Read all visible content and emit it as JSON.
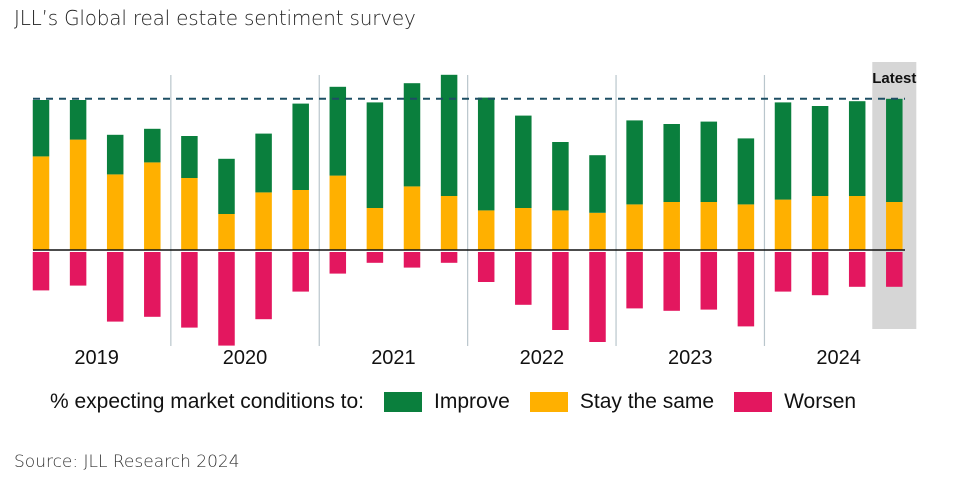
{
  "title": "JLL’s Global real estate sentiment survey",
  "source": "Source: JLL Research 2024",
  "legend": {
    "prefix": "% expecting market conditions to:",
    "items": [
      {
        "label": "Improve",
        "color": "#0a7f3d"
      },
      {
        "label": "Stay the same",
        "color": "#ffb000"
      },
      {
        "label": "Worsen",
        "color": "#e3175f"
      }
    ]
  },
  "chart_data": {
    "type": "bar",
    "stacked": true,
    "highlight_label": "Latest",
    "year_labels": [
      "2019",
      "2020",
      "2021",
      "2022",
      "2023",
      "2024"
    ],
    "bars_per_year": 4,
    "reference_line": "dashed horizontal line at the latest total of Improve + Stay the same",
    "series": [
      {
        "name": "Improve",
        "color": "#0a7f3d",
        "values": [
          47,
          33,
          33,
          28,
          35,
          46,
          49,
          72,
          74,
          88,
          86,
          101,
          94,
          77,
          57,
          48,
          70,
          65,
          67,
          55,
          81,
          75,
          79,
          86
        ]
      },
      {
        "name": "Stay the same",
        "color": "#ffb000",
        "values": [
          78,
          92,
          63,
          73,
          60,
          30,
          48,
          50,
          62,
          35,
          53,
          45,
          33,
          35,
          33,
          31,
          38,
          40,
          40,
          38,
          42,
          45,
          45,
          40
        ]
      },
      {
        "name": "Worsen",
        "color": "#e3175f",
        "values": [
          -32,
          -28,
          -58,
          -54,
          -63,
          -78,
          -56,
          -33,
          -18,
          -9,
          -13,
          -9,
          -25,
          -44,
          -65,
          -75,
          -47,
          -49,
          -48,
          -62,
          -33,
          -36,
          -29,
          -29
        ]
      }
    ]
  }
}
